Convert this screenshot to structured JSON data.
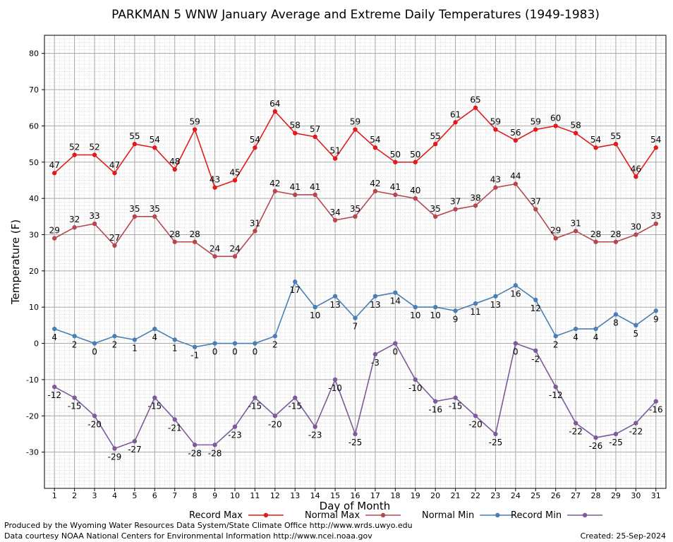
{
  "chart_data": {
    "type": "line",
    "title": "PARKMAN 5 WNW January Average and Extreme Daily Temperatures (1949-1983)",
    "xlabel": "Day of Month",
    "ylabel": "Temperature (F)",
    "xlim": [
      1,
      31
    ],
    "ylim": [
      -40,
      85
    ],
    "yticks": [
      -30,
      -20,
      -10,
      0,
      10,
      20,
      30,
      40,
      50,
      60,
      70,
      80
    ],
    "grid": true,
    "legend_position": "bottom",
    "x": [
      1,
      2,
      3,
      4,
      5,
      6,
      7,
      8,
      9,
      10,
      11,
      12,
      13,
      14,
      15,
      16,
      17,
      18,
      19,
      20,
      21,
      22,
      23,
      24,
      25,
      26,
      27,
      28,
      29,
      30,
      31
    ],
    "series": [
      {
        "name": "Record Max",
        "color": "#e31a1c",
        "values": [
          47,
          52,
          52,
          47,
          55,
          54,
          48,
          59,
          43,
          45,
          54,
          64,
          58,
          57,
          51,
          59,
          54,
          50,
          50,
          55,
          61,
          65,
          59,
          56,
          59,
          60,
          58,
          54,
          55,
          46,
          54
        ]
      },
      {
        "name": "Normal Max",
        "color": "#b5484e",
        "values": [
          29,
          32,
          33,
          27,
          35,
          35,
          28,
          28,
          24,
          24,
          31,
          42,
          41,
          41,
          34,
          35,
          42,
          41,
          40,
          35,
          37,
          38,
          43,
          44,
          37,
          29,
          31,
          28,
          28,
          30,
          33
        ]
      },
      {
        "name": "Normal Min",
        "color": "#4a7fb5",
        "values": [
          4,
          2,
          0,
          2,
          1,
          4,
          1,
          -1,
          0,
          0,
          0,
          2,
          17,
          10,
          13,
          7,
          13,
          14,
          10,
          10,
          9,
          11,
          13,
          16,
          12,
          2,
          4,
          4,
          8,
          5,
          9
        ]
      },
      {
        "name": "Record Min",
        "color": "#7d5a99",
        "values": [
          -12,
          -15,
          -20,
          -29,
          -27,
          -15,
          -21,
          -28,
          -28,
          -23,
          -15,
          -20,
          -15,
          -23,
          -10,
          -25,
          -3,
          0,
          -10,
          -16,
          -15,
          -20,
          -25,
          0,
          -2,
          -12,
          -22,
          -26,
          -25,
          -22,
          -16
        ]
      }
    ]
  },
  "footer": {
    "produced_by": "Produced by the Wyoming Water Resources Data System/State Climate Office http://www.wrds.uwyo.edu",
    "courtesy": "Data courtesy NOAA National Centers for Environmental Information http://www.ncei.noaa.gov",
    "created": "Created:  25-Sep-2024"
  }
}
